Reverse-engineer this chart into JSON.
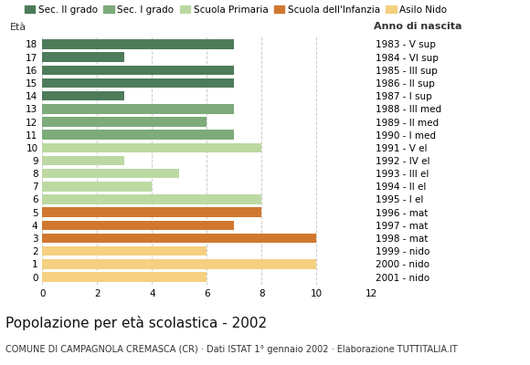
{
  "title": "Popolazione per età scolastica - 2002",
  "subtitle": "COMUNE DI CAMPAGNOLA CREMASCA (CR) · Dati ISTAT 1° gennaio 2002 · Elaborazione TUTTITALIA.IT",
  "label_eta": "Età",
  "label_anno": "Anno di nascita",
  "ages": [
    0,
    1,
    2,
    3,
    4,
    5,
    6,
    7,
    8,
    9,
    10,
    11,
    12,
    13,
    14,
    15,
    16,
    17,
    18
  ],
  "values": [
    6,
    10,
    6,
    10,
    7,
    8,
    8,
    4,
    5,
    3,
    8,
    7,
    6,
    7,
    3,
    7,
    7,
    3,
    7
  ],
  "right_labels": [
    "2001 - nido",
    "2000 - nido",
    "1999 - nido",
    "1998 - mat",
    "1997 - mat",
    "1996 - mat",
    "1995 - I el",
    "1994 - II el",
    "1993 - III el",
    "1992 - IV el",
    "1991 - V el",
    "1990 - I med",
    "1989 - II med",
    "1988 - III med",
    "1987 - I sup",
    "1986 - II sup",
    "1985 - III sup",
    "1984 - VI sup",
    "1983 - V sup"
  ],
  "categories": {
    "Sec. II grado": {
      "ages": [
        14,
        15,
        16,
        17,
        18
      ],
      "color": "#4d7c5a"
    },
    "Sec. I grado": {
      "ages": [
        11,
        12,
        13
      ],
      "color": "#7dab7a"
    },
    "Scuola Primaria": {
      "ages": [
        6,
        7,
        8,
        9,
        10
      ],
      "color": "#bcd9a2"
    },
    "Scuola dell'Infanzia": {
      "ages": [
        3,
        4,
        5
      ],
      "color": "#d07830"
    },
    "Asilo Nido": {
      "ages": [
        0,
        1,
        2
      ],
      "color": "#f5d080"
    }
  },
  "legend_order": [
    "Sec. II grado",
    "Sec. I grado",
    "Scuola Primaria",
    "Scuola dell'Infanzia",
    "Asilo Nido"
  ],
  "xticks": [
    0,
    2,
    4,
    6,
    8,
    10,
    12
  ],
  "background_color": "#ffffff",
  "bar_height": 0.75,
  "grid_color": "#cccccc",
  "title_fontsize": 11,
  "subtitle_fontsize": 7,
  "tick_fontsize": 7.5,
  "legend_fontsize": 7.5
}
